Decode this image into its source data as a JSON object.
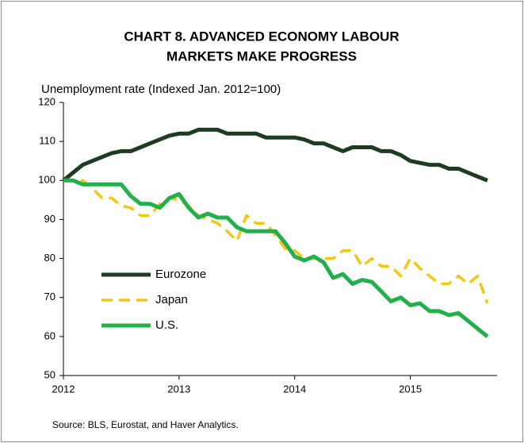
{
  "chart_data": {
    "type": "line",
    "title": [
      "CHART 8. ADVANCED ECONOMY LABOUR",
      "MARKETS MAKE PROGRESS"
    ],
    "y_label": "Unemployment rate (Indexed Jan. 2012=100)",
    "source": "Source: BLS, Eurostat, and Haver Analytics.",
    "x": [
      2012,
      2012.083,
      2012.167,
      2012.25,
      2012.333,
      2012.417,
      2012.5,
      2012.583,
      2012.667,
      2012.75,
      2012.833,
      2012.917,
      2013,
      2013.083,
      2013.167,
      2013.25,
      2013.333,
      2013.417,
      2013.5,
      2013.583,
      2013.667,
      2013.75,
      2013.833,
      2013.917,
      2014,
      2014.083,
      2014.167,
      2014.25,
      2014.333,
      2014.417,
      2014.5,
      2014.583,
      2014.667,
      2014.75,
      2014.833,
      2014.917,
      2015,
      2015.083,
      2015.167,
      2015.25,
      2015.333,
      2015.417,
      2015.5,
      2015.583,
      2015.667
    ],
    "series": [
      {
        "name": "Eurozone",
        "color": "#1e3d20",
        "style": "solid",
        "values": [
          100,
          102,
          104,
          105,
          106,
          107,
          107.5,
          107.5,
          108.5,
          109.5,
          110.5,
          111.5,
          112,
          112,
          113,
          113,
          113,
          112,
          112,
          112,
          112,
          111,
          111,
          111,
          111,
          110.5,
          109.5,
          109.5,
          108.5,
          107.5,
          108.5,
          108.5,
          108.5,
          107.5,
          107.5,
          106.5,
          105,
          104.5,
          104,
          104,
          103,
          103,
          102,
          101,
          100
        ]
      },
      {
        "name": "Japan",
        "color": "#f5c518",
        "style": "dashed",
        "values": [
          100,
          100,
          100,
          98,
          95.5,
          95.5,
          93.5,
          93,
          91,
          91,
          94,
          95.5,
          95,
          93.5,
          91,
          90,
          89,
          87,
          84.5,
          91,
          89,
          89,
          86,
          82.5,
          82,
          80,
          80,
          80,
          80,
          82,
          82,
          78,
          80,
          78,
          78,
          75.5,
          80,
          77.5,
          75.5,
          73.5,
          73.5,
          75.5,
          73.5,
          75.5,
          68.5
        ]
      },
      {
        "name": "U.S.",
        "color": "#22b04a",
        "style": "solid",
        "values": [
          100,
          100,
          99,
          99,
          99,
          99,
          99,
          96,
          94,
          94,
          93,
          95.5,
          96.5,
          93,
          90.5,
          91.5,
          90.5,
          90.5,
          88,
          87,
          87,
          87,
          87,
          84,
          80.5,
          79.5,
          80.5,
          79,
          75,
          76,
          73.5,
          74.5,
          74,
          71.5,
          69,
          70,
          68,
          68.5,
          66.5,
          66.5,
          65.5,
          66,
          64,
          62,
          60
        ]
      }
    ],
    "xlim": [
      2012,
      2015.75
    ],
    "xticks": [
      2012,
      2013,
      2014,
      2015
    ],
    "ylim": [
      50,
      120
    ],
    "yticks": [
      50,
      60,
      70,
      80,
      90,
      100,
      110,
      120
    ],
    "grid": false,
    "legend": "center left"
  }
}
